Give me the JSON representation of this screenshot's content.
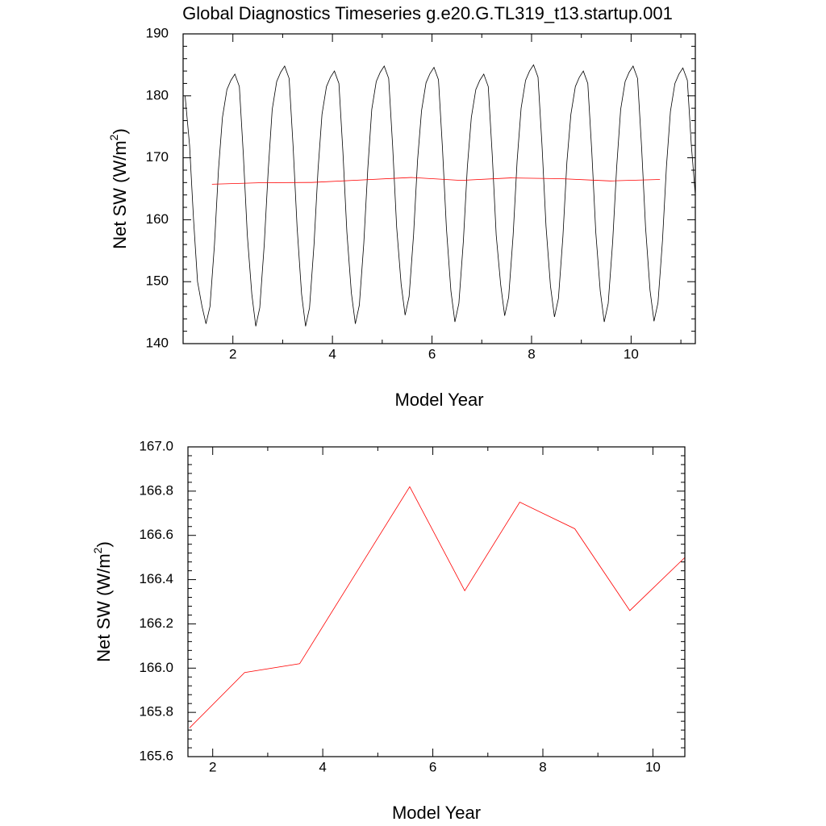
{
  "chart_data": [
    {
      "type": "line",
      "title": "Global Diagnostics Timeseries g.e20.G.TL319_t13.startup.001",
      "xlabel": "Model Year",
      "ylabel": [
        "Net SW (W/m",
        "2",
        ")"
      ],
      "xlim": [
        1,
        11.29
      ],
      "ylim": [
        140,
        190
      ],
      "xticks": [
        2,
        4,
        6,
        8,
        10
      ],
      "x_minor_ticks": [
        3,
        5,
        7,
        9,
        11
      ],
      "yticks": [
        140,
        150,
        160,
        170,
        180,
        190
      ],
      "y_minor_ticks": [
        142,
        144,
        146,
        148,
        152,
        154,
        156,
        158,
        162,
        164,
        166,
        168,
        172,
        174,
        176,
        178,
        182,
        184,
        186,
        188
      ],
      "series": [
        {
          "color": "#000000",
          "x": [
            1.04,
            1.13,
            1.21,
            1.29,
            1.38,
            1.46,
            1.54,
            1.63,
            1.71,
            1.79,
            1.88,
            1.96,
            2.04,
            2.13,
            2.21,
            2.29,
            2.38,
            2.46,
            2.54,
            2.63,
            2.71,
            2.79,
            2.88,
            2.96,
            3.04,
            3.13,
            3.21,
            3.29,
            3.38,
            3.46,
            3.54,
            3.63,
            3.71,
            3.79,
            3.88,
            3.96,
            4.04,
            4.13,
            4.21,
            4.29,
            4.38,
            4.46,
            4.54,
            4.63,
            4.71,
            4.79,
            4.88,
            4.96,
            5.04,
            5.13,
            5.21,
            5.29,
            5.38,
            5.46,
            5.54,
            5.63,
            5.71,
            5.79,
            5.88,
            5.96,
            6.04,
            6.13,
            6.21,
            6.29,
            6.38,
            6.46,
            6.54,
            6.63,
            6.71,
            6.79,
            6.88,
            6.96,
            7.04,
            7.13,
            7.21,
            7.29,
            7.38,
            7.46,
            7.54,
            7.63,
            7.71,
            7.79,
            7.88,
            7.96,
            8.04,
            8.13,
            8.21,
            8.29,
            8.38,
            8.46,
            8.54,
            8.63,
            8.71,
            8.79,
            8.88,
            8.96,
            9.04,
            9.13,
            9.21,
            9.29,
            9.38,
            9.46,
            9.54,
            9.63,
            9.71,
            9.79,
            9.88,
            9.96,
            10.04,
            10.13,
            10.21,
            10.29,
            10.38,
            10.46,
            10.54,
            10.63,
            10.71,
            10.79,
            10.88,
            10.96,
            11.04,
            11.13,
            11.21,
            11.29
          ],
          "values": [
            180,
            172,
            160,
            150,
            146,
            143.2,
            146,
            156,
            168,
            176.5,
            181,
            182.5,
            183.5,
            181.5,
            170.5,
            157.5,
            148,
            142.8,
            145.8,
            156,
            168,
            177.8,
            182.3,
            183.8,
            184.8,
            182.8,
            171.8,
            158.8,
            148,
            142.8,
            145.8,
            156,
            168,
            177,
            181.5,
            183,
            184,
            182,
            171,
            158,
            148.2,
            143.2,
            146.2,
            156.2,
            168.2,
            177.8,
            182.3,
            183.8,
            184.8,
            182.8,
            171.8,
            158.8,
            149.6,
            144.6,
            147.6,
            157.6,
            169.6,
            177.6,
            182.1,
            183.6,
            184.6,
            182.6,
            171.6,
            158.6,
            148.5,
            143.5,
            146.5,
            156.5,
            168.5,
            176.5,
            181,
            182.5,
            183.5,
            181.5,
            170.5,
            157.5,
            149.5,
            144.5,
            147.5,
            157.5,
            169.5,
            178,
            182.5,
            184,
            185,
            183,
            172,
            159,
            149.3,
            144.3,
            147.3,
            157.3,
            169.3,
            177,
            181.5,
            183,
            184,
            182,
            171,
            158,
            148.5,
            143.5,
            146.5,
            156.5,
            168.5,
            177.8,
            182.3,
            183.8,
            184.8,
            182.8,
            171.8,
            158.8,
            148.6,
            143.6,
            146.6,
            156.6,
            168.6,
            177.5,
            182,
            183.5,
            184.5,
            182.5,
            172,
            164
          ]
        },
        {
          "color": "#ff0000",
          "x": [
            1.58,
            2.58,
            3.58,
            4.58,
            5.58,
            6.58,
            7.58,
            8.58,
            9.58,
            10.58
          ],
          "values": [
            165.73,
            165.98,
            166.02,
            166.42,
            166.82,
            166.35,
            166.75,
            166.63,
            166.26,
            166.5
          ]
        }
      ]
    },
    {
      "type": "line",
      "xlabel": "Model Year",
      "ylabel": [
        "Net SW (W/m",
        "2",
        ")"
      ],
      "xlim": [
        1.55,
        10.58
      ],
      "ylim": [
        165.6,
        167
      ],
      "xticks": [
        2,
        4,
        6,
        8,
        10
      ],
      "x_minor_ticks": [
        3,
        5,
        7,
        9
      ],
      "yticks": [
        165.6,
        165.8,
        {
          "value": 166,
          "label": "166.0"
        },
        166.2,
        166.4,
        166.6,
        166.8,
        {
          "value": 167,
          "label": "167.0"
        }
      ],
      "y_minor_ticks": [
        165.64,
        165.68,
        165.72,
        165.76,
        165.84,
        165.88,
        165.92,
        165.96,
        166.04,
        166.08,
        166.12,
        166.16,
        166.24,
        166.28,
        166.32,
        166.36,
        166.44,
        166.48,
        166.52,
        166.56,
        166.64,
        166.68,
        166.72,
        166.76,
        166.84,
        166.88,
        166.92,
        166.96
      ],
      "series": [
        {
          "color": "#ff0000",
          "x": [
            1.58,
            2.58,
            3.58,
            4.58,
            5.58,
            6.58,
            7.58,
            8.58,
            9.58,
            10.58
          ],
          "values": [
            165.73,
            165.98,
            166.02,
            166.42,
            166.82,
            166.35,
            166.75,
            166.63,
            166.26,
            166.5
          ]
        }
      ]
    }
  ]
}
